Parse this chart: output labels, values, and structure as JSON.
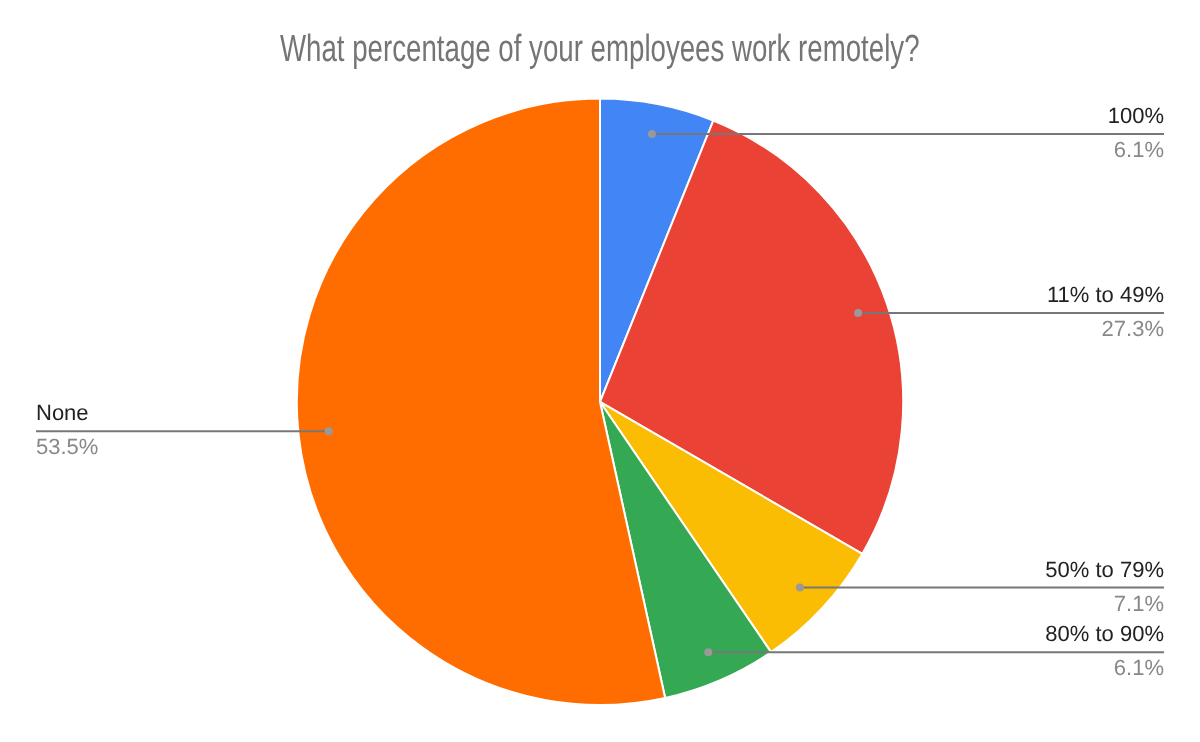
{
  "chart_data": {
    "type": "pie",
    "title": "What percentage of your employees work remotely?",
    "categories": [
      "100%",
      "11% to 49%",
      "50% to 79%",
      "80% to 90%",
      "None"
    ],
    "values": [
      6.1,
      27.3,
      7.1,
      6.1,
      53.5
    ],
    "colors": [
      "#4285f4",
      "#ea4335",
      "#fbbc04",
      "#34a853",
      "#ff6d01"
    ],
    "value_labels": [
      "6.1%",
      "27.3%",
      "7.1%",
      "6.1%",
      "53.5%"
    ],
    "legend": false
  }
}
